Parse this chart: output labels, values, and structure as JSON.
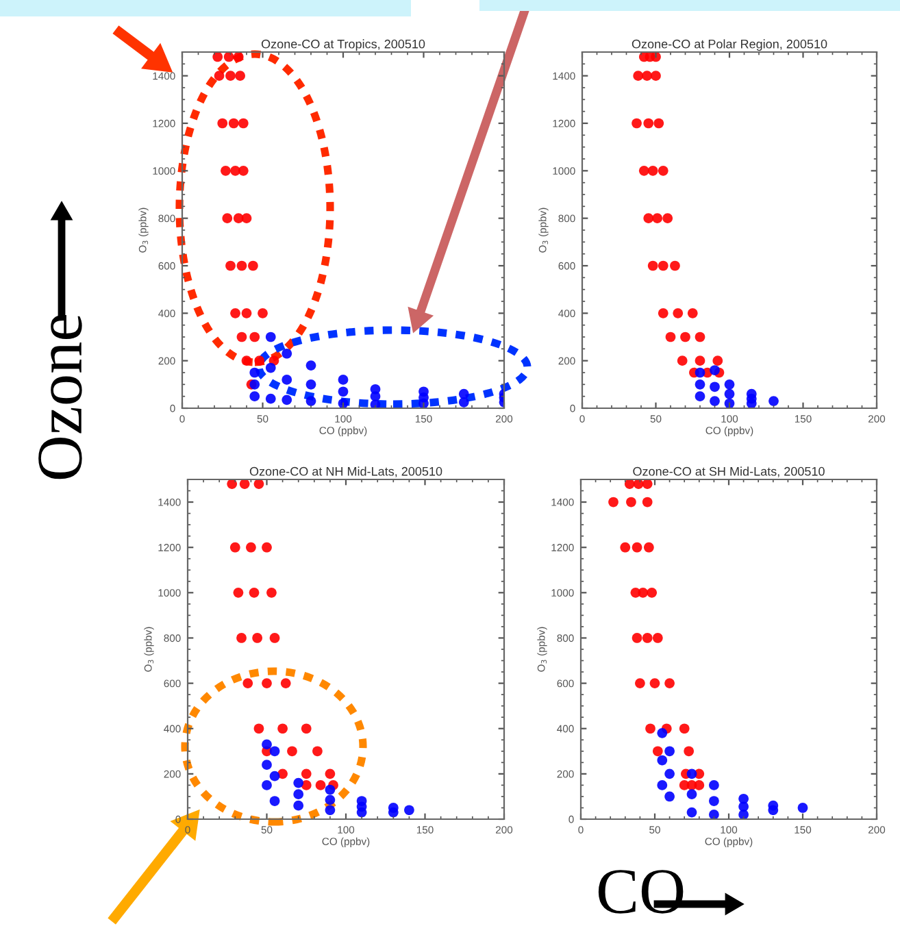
{
  "chart_data": [
    {
      "type": "scatter",
      "title": "Ozone-CO at Tropics, 200510",
      "xlabel": "CO (ppbv)",
      "ylabel": "O$_{3}$ (ppbv)",
      "xlim": [
        0,
        200
      ],
      "ylim": [
        0,
        1500
      ],
      "xticks": [
        0,
        50,
        100,
        150,
        200
      ],
      "yticks": [
        0,
        200,
        400,
        600,
        800,
        1000,
        1200,
        1400
      ],
      "marker": "circle",
      "annotations": [
        "Ozone"
      ],
      "series": [
        {
          "color": "#ff0000",
          "x": [
            22,
            29,
            35,
            23,
            30,
            36,
            25,
            32,
            38,
            27,
            33,
            38,
            28,
            35,
            40,
            30,
            37,
            44,
            33,
            40,
            50,
            37,
            45,
            40,
            48,
            57,
            43
          ],
          "values": [
            1480,
            1480,
            1480,
            1400,
            1400,
            1400,
            1200,
            1200,
            1200,
            1000,
            1000,
            1000,
            800,
            800,
            800,
            600,
            600,
            600,
            400,
            400,
            400,
            300,
            300,
            200,
            200,
            200,
            100
          ]
        },
        {
          "color": "#0000ff",
          "x": [
            45,
            45,
            45,
            55,
            55,
            55,
            65,
            65,
            65,
            80,
            80,
            80,
            100,
            100,
            100,
            120,
            120,
            120,
            150,
            150,
            150,
            175,
            175,
            200,
            200,
            200
          ],
          "values": [
            50,
            100,
            150,
            40,
            170,
            300,
            35,
            120,
            230,
            30,
            100,
            180,
            20,
            70,
            120,
            15,
            50,
            80,
            20,
            45,
            70,
            25,
            60,
            25,
            45,
            60
          ]
        }
      ]
    },
    {
      "type": "scatter",
      "title": "Ozone-CO at Polar Region, 200510",
      "xlabel": "CO (ppbv)",
      "ylabel": "O$_{3}$ (ppbv)",
      "xlim": [
        0,
        200
      ],
      "ylim": [
        0,
        1500
      ],
      "xticks": [
        0,
        50,
        100,
        150,
        200
      ],
      "yticks": [
        0,
        200,
        400,
        600,
        800,
        1000,
        1200,
        1400
      ],
      "marker": "circle",
      "series": [
        {
          "color": "#ff0000",
          "x": [
            42,
            46,
            50,
            38,
            44,
            50,
            37,
            45,
            52,
            42,
            48,
            55,
            45,
            51,
            58,
            48,
            55,
            63,
            55,
            65,
            75,
            60,
            70,
            80,
            68,
            80,
            92,
            76,
            85,
            93
          ],
          "values": [
            1480,
            1480,
            1480,
            1400,
            1400,
            1400,
            1200,
            1200,
            1200,
            1000,
            1000,
            1000,
            800,
            800,
            800,
            600,
            600,
            600,
            400,
            400,
            400,
            300,
            300,
            300,
            200,
            200,
            200,
            150,
            150,
            150
          ]
        },
        {
          "color": "#0000ff",
          "x": [
            80,
            80,
            80,
            90,
            90,
            90,
            100,
            100,
            100,
            115,
            115,
            115,
            130
          ],
          "values": [
            50,
            100,
            150,
            30,
            90,
            160,
            20,
            60,
            100,
            20,
            40,
            60,
            30
          ]
        }
      ]
    },
    {
      "type": "scatter",
      "title": "Ozone-CO at NH Mid-Lats, 200510",
      "xlabel": "CO (ppbv)",
      "ylabel": "O$_{3}$ (ppbv)",
      "xlim": [
        0,
        200
      ],
      "ylim": [
        0,
        1500
      ],
      "xticks": [
        0,
        50,
        100,
        150,
        200
      ],
      "yticks": [
        0,
        200,
        400,
        600,
        800,
        1000,
        1200,
        1400
      ],
      "marker": "circle",
      "series": [
        {
          "color": "#ff0000",
          "x": [
            28,
            36,
            45,
            30,
            40,
            50,
            32,
            42,
            53,
            34,
            44,
            55,
            38,
            50,
            62,
            45,
            60,
            75,
            50,
            66,
            82,
            60,
            75,
            90,
            75,
            84,
            92
          ],
          "values": [
            1480,
            1480,
            1480,
            1200,
            1200,
            1200,
            1000,
            1000,
            1000,
            800,
            800,
            800,
            600,
            600,
            600,
            400,
            400,
            400,
            300,
            300,
            300,
            200,
            200,
            200,
            150,
            150,
            150
          ]
        },
        {
          "color": "#0000ff",
          "x": [
            50,
            50,
            50,
            55,
            55,
            55,
            70,
            70,
            70,
            90,
            90,
            90,
            110,
            110,
            110,
            130,
            130,
            140
          ],
          "values": [
            150,
            240,
            330,
            80,
            190,
            300,
            60,
            110,
            160,
            40,
            85,
            130,
            30,
            55,
            80,
            30,
            50,
            40
          ]
        }
      ]
    },
    {
      "type": "scatter",
      "title": "Ozone-CO at SH Mid-Lats, 200510",
      "xlabel": "CO (ppbv)",
      "ylabel": "O$_{3}$ (ppbv)",
      "xlim": [
        0,
        200
      ],
      "ylim": [
        0,
        1500
      ],
      "xticks": [
        0,
        50,
        100,
        150,
        200
      ],
      "yticks": [
        0,
        200,
        400,
        600,
        800,
        1000,
        1200,
        1400
      ],
      "marker": "circle",
      "annotations": [
        "CO"
      ],
      "series": [
        {
          "color": "#ff0000",
          "x": [
            33,
            39,
            45,
            22,
            34,
            45,
            30,
            38,
            46,
            37,
            42,
            48,
            38,
            45,
            52,
            40,
            50,
            60,
            47,
            58,
            70,
            52,
            73,
            71,
            80,
            70,
            75,
            80
          ],
          "values": [
            1480,
            1480,
            1480,
            1400,
            1400,
            1400,
            1200,
            1200,
            1200,
            1000,
            1000,
            1000,
            800,
            800,
            800,
            600,
            600,
            600,
            400,
            400,
            400,
            300,
            300,
            200,
            200,
            150,
            150,
            150
          ]
        },
        {
          "color": "#0000ff",
          "x": [
            55,
            55,
            55,
            60,
            60,
            60,
            75,
            75,
            75,
            90,
            90,
            90,
            110,
            110,
            110,
            130,
            130,
            150
          ],
          "values": [
            150,
            260,
            380,
            100,
            200,
            300,
            30,
            110,
            200,
            20,
            80,
            150,
            20,
            55,
            90,
            40,
            60,
            50
          ]
        }
      ]
    }
  ]
}
